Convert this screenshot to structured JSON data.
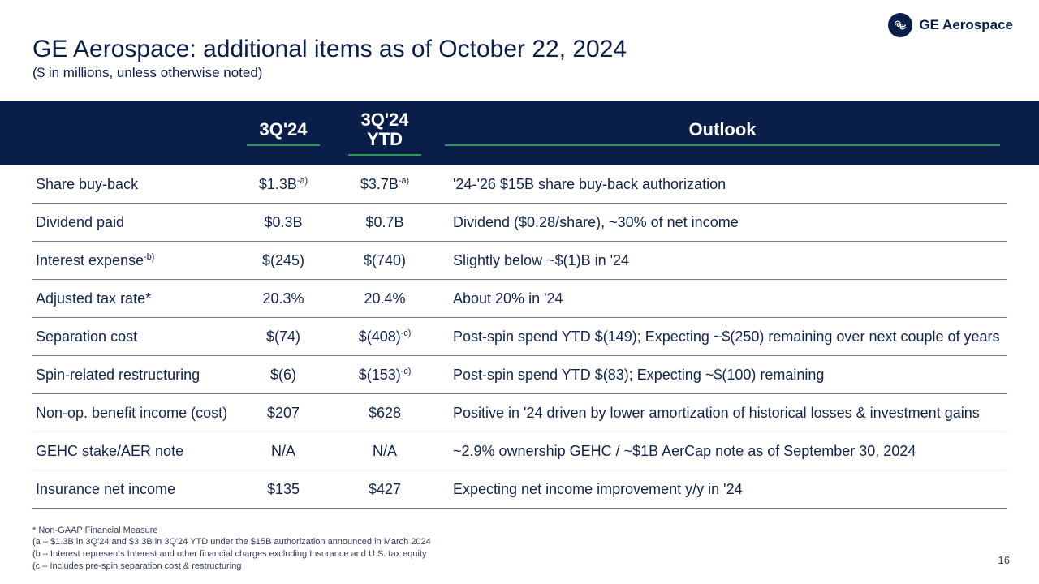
{
  "brand": {
    "name": "GE Aerospace"
  },
  "title": "GE Aerospace: additional items as of October 22, 2024",
  "subtitle": "($ in millions, unless otherwise noted)",
  "page_number": "16",
  "colors": {
    "navy": "#0a1e4a",
    "accent_green": "#2e9a5a",
    "rule": "#6b7a99",
    "background": "#ffffff"
  },
  "typography": {
    "title_fontsize": 30,
    "subtitle_fontsize": 17,
    "header_fontsize": 22,
    "row_fontsize": 18,
    "footnote_fontsize": 11
  },
  "headers": {
    "q": "3Q'24",
    "ytd_line1": "3Q'24",
    "ytd_line2": "YTD",
    "outlook": "Outlook"
  },
  "rows": [
    {
      "label": "Share buy-back",
      "label_sup": "",
      "q": "$1.3B",
      "q_sup": "-a)",
      "ytd": "$3.7B",
      "ytd_sup": "-a)",
      "outlook": "'24-'26 $15B share buy-back authorization"
    },
    {
      "label": "Dividend paid",
      "label_sup": "",
      "q": "$0.3B",
      "q_sup": "",
      "ytd": "$0.7B",
      "ytd_sup": "",
      "outlook": "Dividend ($0.28/share), ~30% of net income"
    },
    {
      "label": "Interest expense",
      "label_sup": "-b)",
      "q": "$(245)",
      "q_sup": "",
      "ytd": "$(740)",
      "ytd_sup": "",
      "outlook": "Slightly below ~$(1)B in '24"
    },
    {
      "label": "Adjusted tax rate*",
      "label_sup": "",
      "q": "20.3%",
      "q_sup": "",
      "ytd": "20.4%",
      "ytd_sup": "",
      "outlook": "About 20% in '24"
    },
    {
      "label": "Separation cost",
      "label_sup": "",
      "q": "$(74)",
      "q_sup": "",
      "ytd": "$(408)",
      "ytd_sup": "-c)",
      "outlook": "Post-spin spend YTD $(149); Expecting ~$(250) remaining over next couple of years"
    },
    {
      "label": "Spin-related restructuring",
      "label_sup": "",
      "q": "$(6)",
      "q_sup": "",
      "ytd": "$(153)",
      "ytd_sup": "-c)",
      "outlook": "Post-spin spend YTD $(83); Expecting ~$(100) remaining"
    },
    {
      "label": "Non-op. benefit income (cost)",
      "label_sup": "",
      "q": "$207",
      "q_sup": "",
      "ytd": "$628",
      "ytd_sup": "",
      "outlook": "Positive in '24 driven by lower amortization of historical losses & investment gains"
    },
    {
      "label": "GEHC stake/AER note",
      "label_sup": "",
      "q": "N/A",
      "q_sup": "",
      "ytd": "N/A",
      "ytd_sup": "",
      "outlook": "~2.9% ownership GEHC / ~$1B AerCap note as of September 30, 2024"
    },
    {
      "label": "Insurance net income",
      "label_sup": "",
      "q": "$135",
      "q_sup": "",
      "ytd": "$427",
      "ytd_sup": "",
      "outlook": "Expecting net income improvement y/y in '24"
    }
  ],
  "footnotes": {
    "f0": "* Non-GAAP Financial Measure",
    "f1": "(a – $1.3B in 3Q'24 and $3.3B in 3Q'24 YTD under the $15B authorization announced in March 2024",
    "f2": "(b – Interest represents Interest and other financial charges excluding Insurance and U.S. tax equity",
    "f3": "(c – Includes pre-spin separation cost & restructuring"
  }
}
